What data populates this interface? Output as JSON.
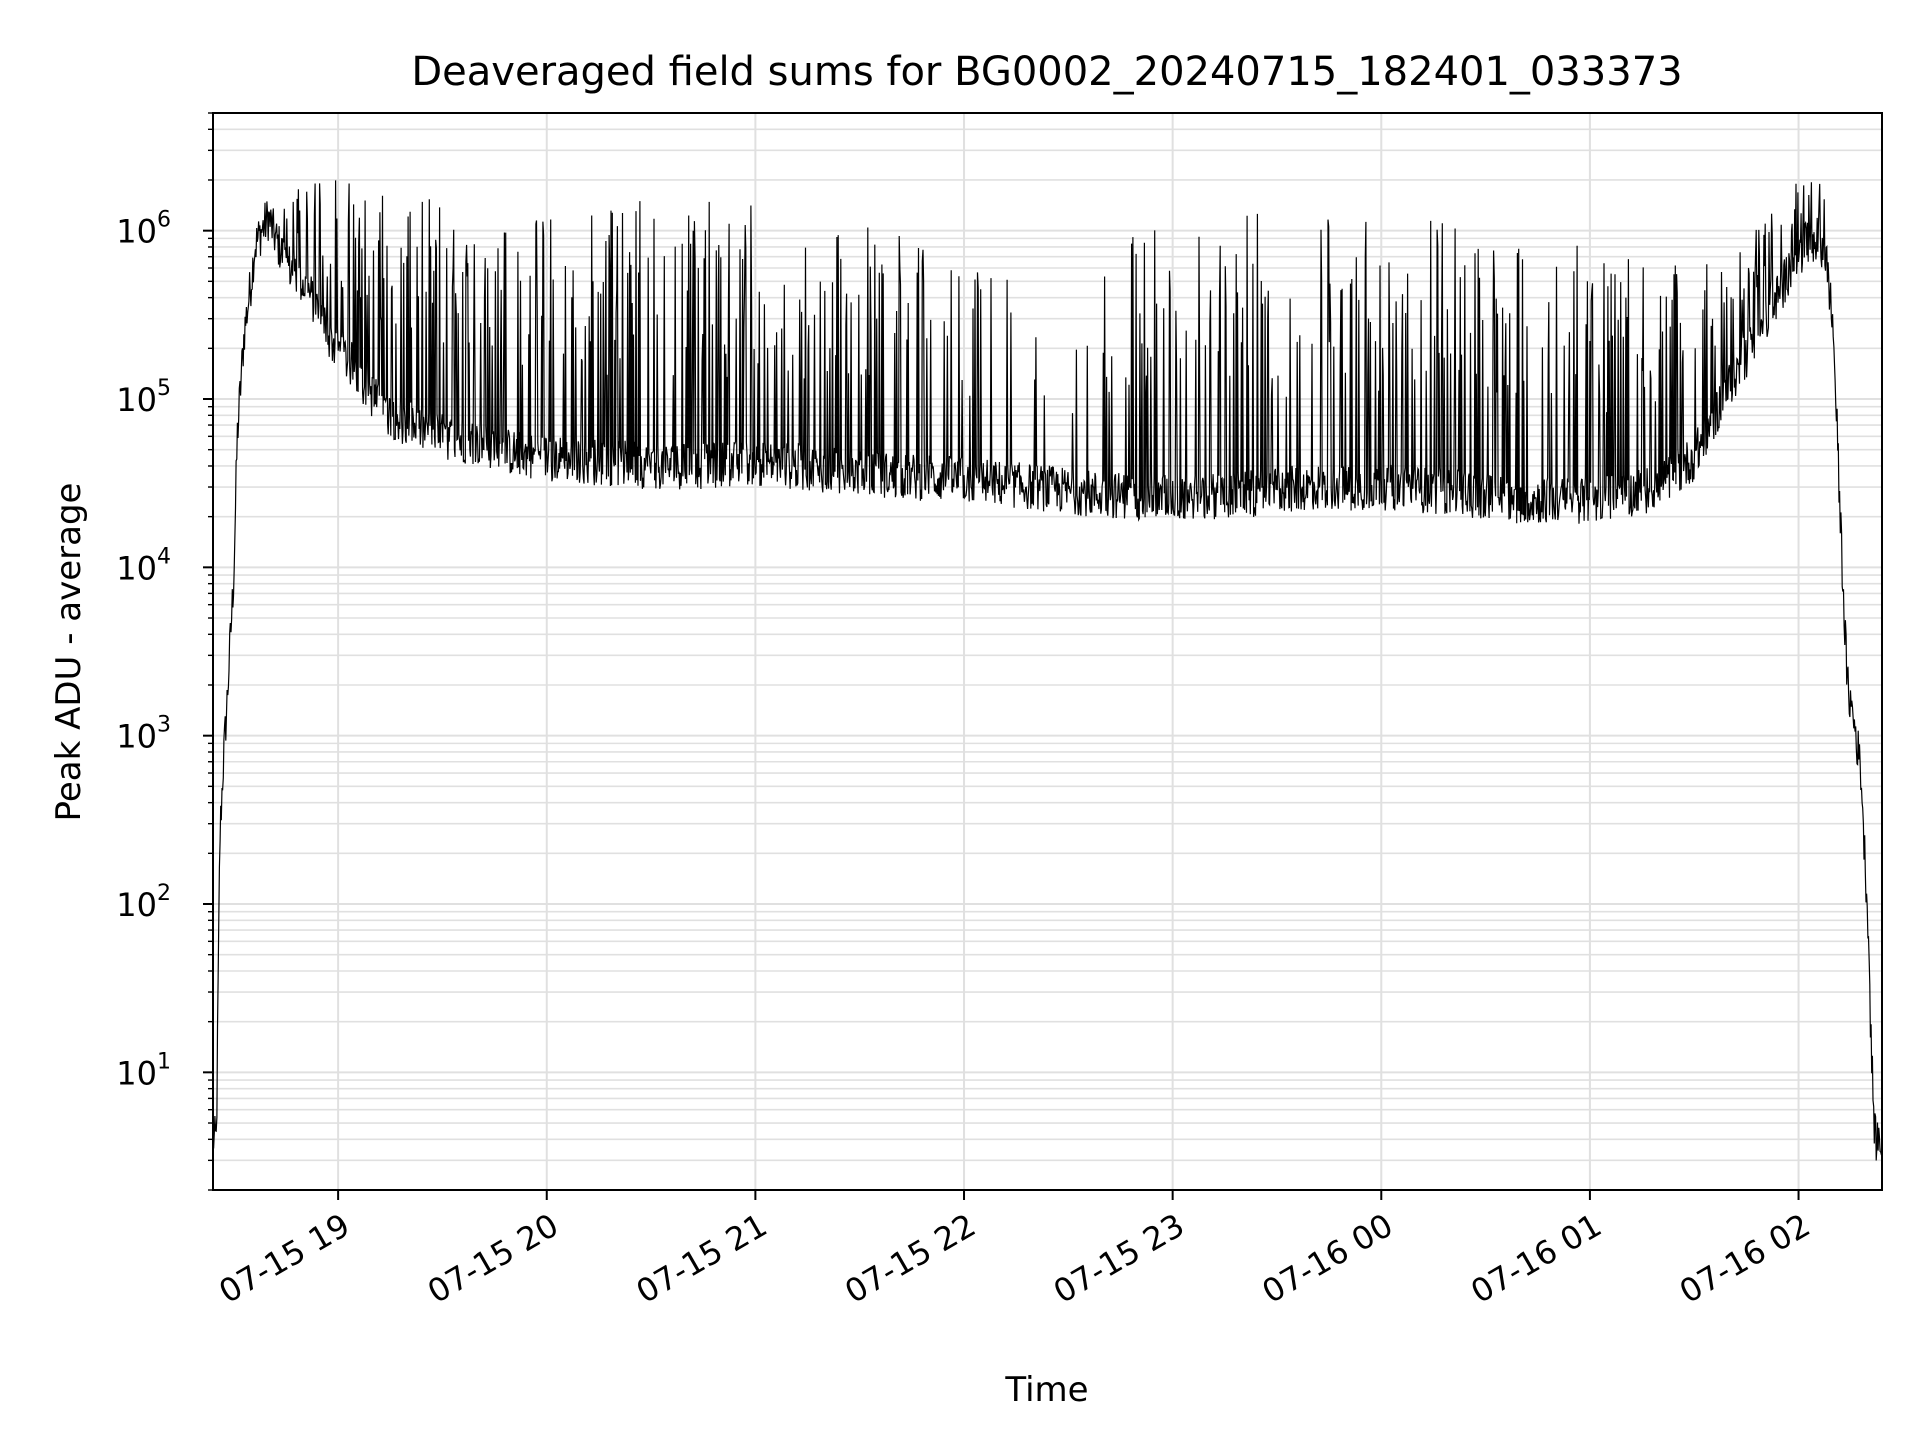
{
  "chart_data": {
    "type": "line",
    "title": "Deaveraged field sums for BG0002_20240715_182401_033373",
    "xlabel": "Time",
    "ylabel": "Peak ADU - average",
    "yscale": "log",
    "ylim": [
      2,
      5000000
    ],
    "xlim": [
      "2024-07-15 18:24:01",
      "2024-07-16 02:24:00"
    ],
    "grid": true,
    "line_color": "#000000",
    "grid_color": "#e0e0e0",
    "y_tick_labels": [
      {
        "value": 10,
        "base": "10",
        "exp": "1"
      },
      {
        "value": 100,
        "base": "10",
        "exp": "2"
      },
      {
        "value": 1000,
        "base": "10",
        "exp": "3"
      },
      {
        "value": 10000,
        "base": "10",
        "exp": "4"
      },
      {
        "value": 100000,
        "base": "10",
        "exp": "5"
      },
      {
        "value": 1000000,
        "base": "10",
        "exp": "6"
      }
    ],
    "x_tick_labels": [
      {
        "time": "2024-07-15 19:00",
        "label": "07-15 19"
      },
      {
        "time": "2024-07-15 20:00",
        "label": "07-15 20"
      },
      {
        "time": "2024-07-15 21:00",
        "label": "07-15 21"
      },
      {
        "time": "2024-07-15 22:00",
        "label": "07-15 22"
      },
      {
        "time": "2024-07-15 23:00",
        "label": "07-15 23"
      },
      {
        "time": "2024-07-16 00:00",
        "label": "07-16 00"
      },
      {
        "time": "2024-07-16 01:00",
        "label": "07-16 01"
      },
      {
        "time": "2024-07-16 02:00",
        "label": "07-16 02"
      }
    ],
    "series": [
      {
        "x": [
          "2024-07-15 18:24",
          "2024-07-15 18:25",
          "2024-07-15 18:26",
          "2024-07-15 18:27",
          "2024-07-15 18:28",
          "2024-07-15 18:30",
          "2024-07-15 18:31",
          "2024-07-15 18:33",
          "2024-07-15 18:35",
          "2024-07-15 18:36",
          "2024-07-15 18:38",
          "2024-07-15 18:40",
          "2024-07-15 18:42",
          "2024-07-15 18:45",
          "2024-07-15 18:48",
          "2024-07-15 18:51",
          "2024-07-15 18:55",
          "2024-07-15 18:58",
          "2024-07-15 19:05",
          "2024-07-15 19:12",
          "2024-07-15 19:20",
          "2024-07-15 19:30",
          "2024-07-15 19:40",
          "2024-07-15 19:50",
          "2024-07-15 20:00",
          "2024-07-15 20:15",
          "2024-07-15 20:30",
          "2024-07-15 20:45",
          "2024-07-15 21:00",
          "2024-07-15 21:20",
          "2024-07-15 21:40",
          "2024-07-15 22:00",
          "2024-07-15 22:20",
          "2024-07-15 22:40",
          "2024-07-15 23:00",
          "2024-07-15 23:20",
          "2024-07-15 23:40",
          "2024-07-16 00:00",
          "2024-07-16 00:20",
          "2024-07-16 00:40",
          "2024-07-16 01:00",
          "2024-07-16 01:10",
          "2024-07-16 01:20",
          "2024-07-16 01:30",
          "2024-07-16 01:40",
          "2024-07-16 01:50",
          "2024-07-16 01:55",
          "2024-07-16 02:00",
          "2024-07-16 02:05",
          "2024-07-16 02:08",
          "2024-07-16 02:10",
          "2024-07-16 02:12",
          "2024-07-16 02:14",
          "2024-07-16 02:16",
          "2024-07-16 02:18",
          "2024-07-16 02:19",
          "2024-07-16 02:20",
          "2024-07-16 02:21",
          "2024-07-16 02:22",
          "2024-07-16 02:23"
        ],
        "y": [
          4,
          4,
          250,
          700,
          1500,
          9000,
          60000,
          250000,
          500000,
          800000,
          1000000,
          1200000,
          900000,
          650000,
          550000,
          450000,
          320000,
          220000,
          150000,
          90000,
          70000,
          60000,
          55000,
          48000,
          45000,
          42000,
          40000,
          40000,
          42000,
          38000,
          35000,
          33000,
          30000,
          27000,
          26000,
          27000,
          30000,
          30000,
          28000,
          25000,
          25000,
          27000,
          30000,
          45000,
          120000,
          280000,
          450000,
          750000,
          900000,
          700000,
          250000,
          20000,
          2000,
          1200,
          600,
          200,
          80,
          12,
          4,
          4
        ]
      }
    ],
    "spike_envelope": {
      "x": [
        "2024-07-15 18:40",
        "2024-07-15 19:00",
        "2024-07-15 19:20",
        "2024-07-15 19:35",
        "2024-07-15 19:50",
        "2024-07-15 20:10",
        "2024-07-15 20:30",
        "2024-07-15 20:50",
        "2024-07-15 21:10",
        "2024-07-15 21:30",
        "2024-07-15 21:50",
        "2024-07-15 22:10",
        "2024-07-15 22:30",
        "2024-07-15 22:45",
        "2024-07-15 23:00",
        "2024-07-15 23:20",
        "2024-07-15 23:40",
        "2024-07-16 00:00",
        "2024-07-16 00:20",
        "2024-07-16 00:40",
        "2024-07-16 01:00",
        "2024-07-16 01:20",
        "2024-07-16 01:40",
        "2024-07-16 02:00"
      ],
      "y": [
        2500000,
        2000000,
        1600000,
        1600000,
        1200000,
        1500000,
        1500000,
        1500000,
        1400000,
        1200000,
        800000,
        600000,
        300000,
        1000000,
        1200000,
        1300000,
        1300000,
        1300000,
        1200000,
        900000,
        800000,
        600000,
        700000,
        2000000
      ]
    }
  }
}
